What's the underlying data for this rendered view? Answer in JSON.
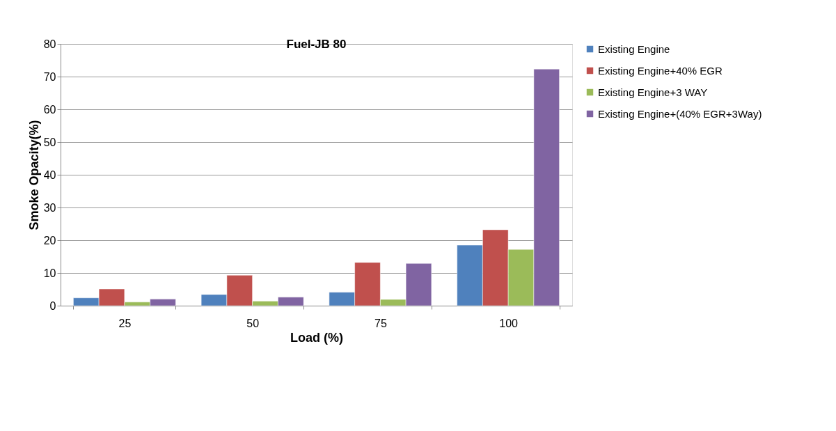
{
  "chart_data": {
    "type": "bar",
    "title": "Fuel-JB  80",
    "xlabel": "Load (%)",
    "ylabel": "Smoke Opacity(%)",
    "categories": [
      "25",
      "50",
      "75",
      "100"
    ],
    "series": [
      {
        "name": "Existing Engine",
        "color": "#4f81bd",
        "values": [
          2.4,
          3.4,
          4.1,
          18.5
        ]
      },
      {
        "name": "Existing Engine+40% EGR",
        "color": "#c0504d",
        "values": [
          5.1,
          9.3,
          13.2,
          23.2
        ]
      },
      {
        "name": "Existing Engine+3 WAY",
        "color": "#9bbb59",
        "values": [
          1.1,
          1.4,
          1.9,
          17.2
        ]
      },
      {
        "name": "Existing Engine+(40% EGR+3Way)",
        "color": "#8064a2",
        "values": [
          2.0,
          2.6,
          12.9,
          72.3
        ]
      }
    ],
    "ylim": [
      0,
      80
    ],
    "yticks": [
      0,
      10,
      20,
      30,
      40,
      50,
      60,
      70,
      80
    ],
    "grid": "y",
    "legend": "right"
  }
}
